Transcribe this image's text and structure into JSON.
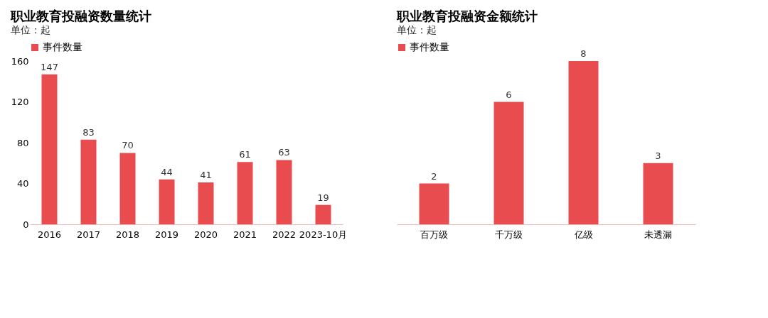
{
  "chart_data": [
    {
      "type": "bar",
      "title": "职业教育投融资数量统计",
      "annotations": [
        "单位：起"
      ],
      "categories": [
        "2016",
        "2017",
        "2018",
        "2019",
        "2020",
        "2021",
        "2022",
        "2023-10月"
      ],
      "series": [
        {
          "name": "事件数量",
          "color": "#e84c4f",
          "values": [
            147,
            83,
            70,
            44,
            41,
            61,
            63,
            19
          ]
        }
      ],
      "ylim": [
        0,
        160
      ],
      "yticks": [
        0,
        40,
        80,
        120,
        160
      ],
      "data_labels": true,
      "legend": "top left",
      "grid": false
    },
    {
      "type": "bar",
      "title": "职业教育投融资金额统计",
      "annotations": [
        "单位：起"
      ],
      "categories": [
        "百万级",
        "千万级",
        "亿级",
        "未透漏"
      ],
      "series": [
        {
          "name": "事件数量",
          "color": "#e84c4f",
          "values": [
            2,
            6,
            8,
            3
          ]
        }
      ],
      "tick_labels": "x",
      "data_labels": true,
      "legend": "top left",
      "grid": false
    }
  ]
}
